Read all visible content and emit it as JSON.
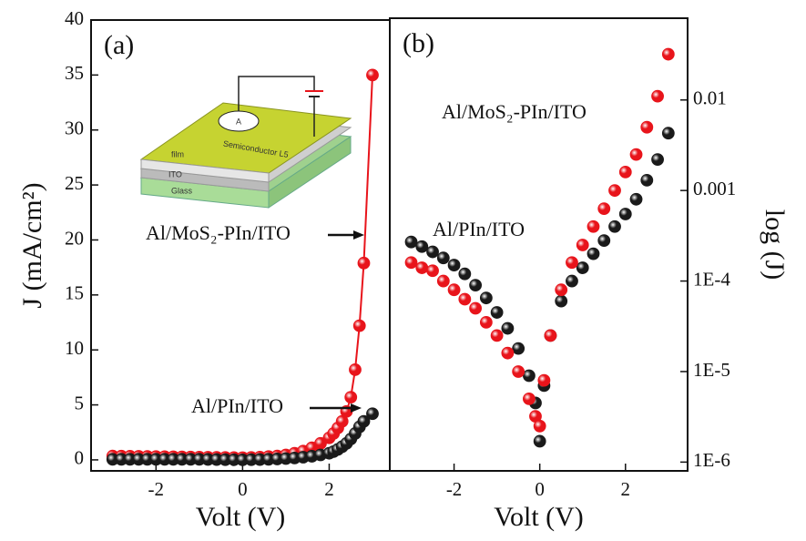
{
  "chart_data": [
    {
      "type": "line",
      "panel_label": "(a)",
      "xlabel": "Volt (V)",
      "ylabel": "J (mA/cm²)",
      "xlim": [
        -3.5,
        3.4
      ],
      "ylim": [
        -1,
        40
      ],
      "xticks": [
        -2,
        0,
        2
      ],
      "yticks": [
        0,
        5,
        10,
        15,
        20,
        25,
        30,
        35,
        40
      ],
      "x": [
        -3,
        -2.8,
        -2.6,
        -2.4,
        -2.2,
        -2,
        -1.8,
        -1.6,
        -1.4,
        -1.2,
        -1,
        -0.8,
        -0.6,
        -0.4,
        -0.2,
        0,
        0.2,
        0.4,
        0.6,
        0.8,
        1,
        1.2,
        1.4,
        1.6,
        1.8,
        2,
        2.1,
        2.2,
        2.3,
        2.4,
        2.5,
        2.6,
        2.7,
        2.8,
        3
      ],
      "series": [
        {
          "color": "#e8141b",
          "line": true,
          "values": [
            0.35,
            0.34,
            0.33,
            0.32,
            0.31,
            0.3,
            0.29,
            0.28,
            0.27,
            0.26,
            0.25,
            0.24,
            0.23,
            0.22,
            0.21,
            0.2,
            0.22,
            0.25,
            0.3,
            0.35,
            0.45,
            0.6,
            0.8,
            1.1,
            1.5,
            2,
            2.4,
            2.9,
            3.5,
            4.4,
            5.7,
            8.2,
            12.2,
            17.9,
            35
          ]
        },
        {
          "color": "#1a1a1a",
          "line": false,
          "values": [
            0.05,
            0.05,
            0.05,
            0.05,
            0.05,
            0.05,
            0.05,
            0.05,
            0.05,
            0.05,
            0.05,
            0.04,
            0.03,
            0.02,
            0.01,
            0,
            0.02,
            0.03,
            0.05,
            0.08,
            0.12,
            0.17,
            0.24,
            0.33,
            0.45,
            0.6,
            0.75,
            0.95,
            1.2,
            1.5,
            1.9,
            2.4,
            3,
            3.5,
            4.2
          ]
        }
      ],
      "annotations": [
        "Al/MoS₂-PIn/ITO",
        "Al/PIn/ITO"
      ],
      "inset_labels": [
        "A",
        "Semiconductor L5",
        "film",
        "ITO",
        "Glass"
      ]
    },
    {
      "type": "scatter",
      "panel_label": "(b)",
      "xlabel": "Volt (V)",
      "y2label": "log (J)",
      "y2scale": "log",
      "xlim": [
        -3.5,
        3.45
      ],
      "y2lim": [
        8e-07,
        0.08
      ],
      "xticks": [
        -2,
        0,
        2
      ],
      "y2ticks": [
        0.01,
        0.001,
        {
          "value": 0.0001,
          "label": "1E-4"
        },
        {
          "value": 1e-05,
          "label": "1E-5"
        },
        {
          "value": 1e-06,
          "label": "1E-6"
        }
      ],
      "x": [
        -3,
        -2.75,
        -2.5,
        -2.25,
        -2,
        -1.75,
        -1.5,
        -1.25,
        -1,
        -0.75,
        -0.5,
        -0.25,
        -0.1,
        0,
        0.1,
        0.25,
        0.5,
        0.75,
        1,
        1.25,
        1.5,
        1.75,
        2,
        2.25,
        2.5,
        2.75,
        3
      ],
      "series": [
        {
          "color": "#1a1a1a",
          "axis": "y2",
          "values": [
            0.00027,
            0.00024,
            0.00021,
            0.00018,
            0.00015,
            0.00012,
            9e-05,
            6.5e-05,
            4.5e-05,
            3e-05,
            1.8e-05,
            9e-06,
            4.5e-06,
            1.7e-06,
            7e-06,
            2.5e-05,
            6e-05,
            0.0001,
            0.00014,
            0.0002,
            0.00028,
            0.0004,
            0.00055,
            0.0008,
            0.0013,
            0.0022,
            0.0043
          ]
        },
        {
          "color": "#e8141b",
          "axis": "y2",
          "values": [
            0.00016,
            0.00014,
            0.00013,
            0.0001,
            8e-05,
            6.3e-05,
            5e-05,
            3.5e-05,
            2.5e-05,
            1.6e-05,
            1e-05,
            5e-06,
            3.2e-06,
            2.5e-06,
            8e-06,
            2.5e-05,
            8e-05,
            0.00016,
            0.00025,
            0.0004,
            0.00063,
            0.001,
            0.0016,
            0.0025,
            0.005,
            0.011,
            0.032
          ]
        }
      ],
      "annotations": [
        "Al/MoS₂-PIn/ITO",
        "Al/PIn/ITO"
      ]
    }
  ]
}
